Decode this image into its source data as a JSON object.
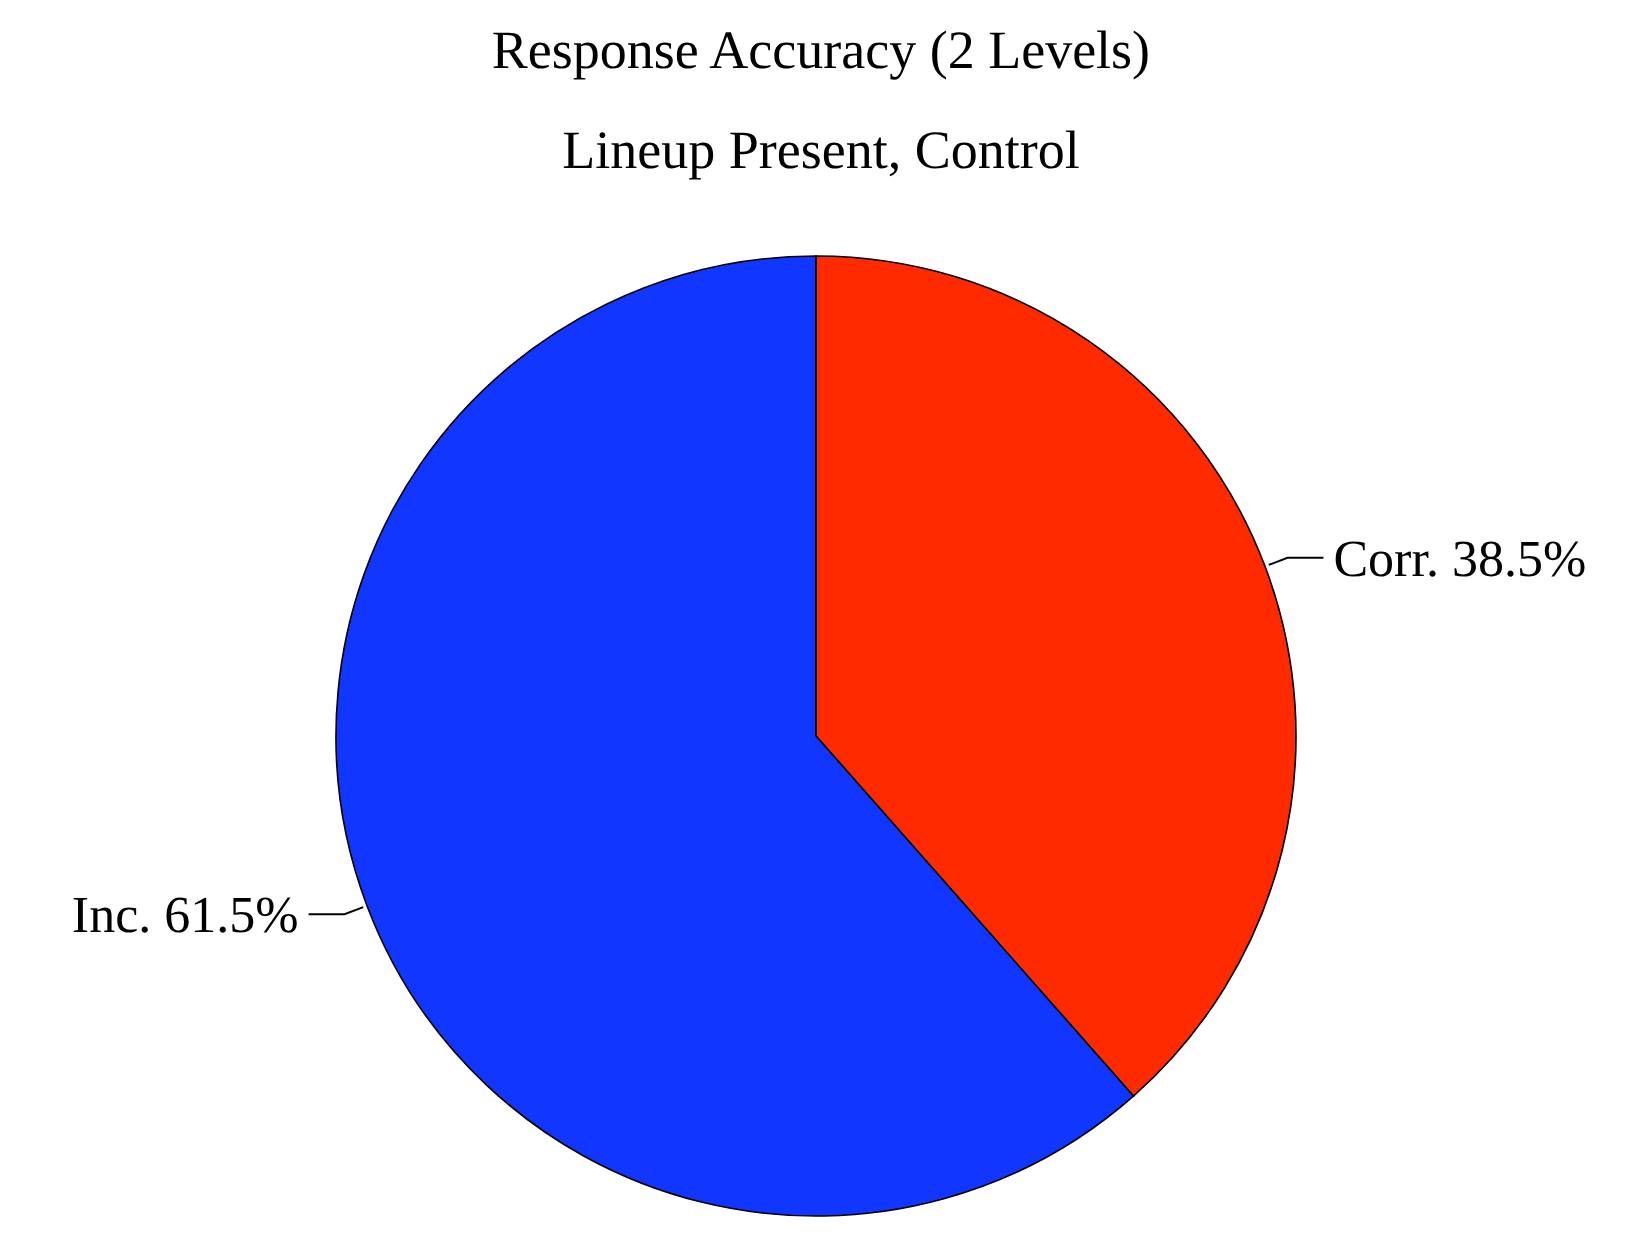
{
  "chart_data": {
    "type": "pie",
    "title": "Response Accuracy (2 Levels)",
    "subtitle": "Lineup Present, Control",
    "categories": [
      "Corr.",
      "Inc."
    ],
    "values": [
      38.5,
      61.5
    ],
    "value_labels": [
      "38.5%",
      "61.5%"
    ],
    "colors": [
      "#ff2a00",
      "#1036ff"
    ]
  }
}
